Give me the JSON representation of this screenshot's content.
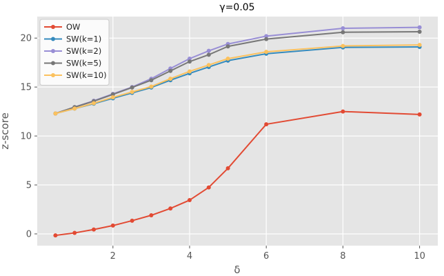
{
  "chart_data": {
    "type": "line",
    "title": "γ=0.05",
    "xlabel": "δ",
    "ylabel": "z-score",
    "xlim": [
      0.025,
      10.475
    ],
    "ylim": [
      -1.2,
      22.2
    ],
    "xticks": [
      2,
      4,
      6,
      8,
      10
    ],
    "yticks": [
      0,
      5,
      10,
      15,
      20
    ],
    "grid": true,
    "legend_position": "top-left",
    "x": [
      0.5,
      1,
      1.5,
      2,
      2.5,
      3,
      3.5,
      4,
      4.5,
      5,
      6,
      8,
      10
    ],
    "series": [
      {
        "name": "OW",
        "color": "#E24A33",
        "values": [
          -0.15,
          0.1,
          0.45,
          0.85,
          1.35,
          1.9,
          2.6,
          3.45,
          4.75,
          6.7,
          11.2,
          12.5,
          12.2
        ]
      },
      {
        "name": "SW(k=1)",
        "color": "#348ABD",
        "values": [
          12.3,
          12.8,
          13.3,
          13.85,
          14.4,
          14.95,
          15.7,
          16.4,
          17.05,
          17.7,
          18.4,
          19.05,
          19.1
        ]
      },
      {
        "name": "SW(k=2)",
        "color": "#988ED5",
        "values": [
          12.3,
          12.95,
          13.6,
          14.3,
          15.0,
          15.85,
          16.9,
          17.9,
          18.7,
          19.4,
          20.2,
          21.0,
          21.1
        ]
      },
      {
        "name": "SW(k=5)",
        "color": "#777777",
        "values": [
          12.3,
          12.95,
          13.55,
          14.25,
          14.95,
          15.7,
          16.65,
          17.6,
          18.3,
          19.15,
          19.9,
          20.6,
          20.65
        ]
      },
      {
        "name": "SW(k=10)",
        "color": "#FBC15E",
        "values": [
          12.3,
          12.8,
          13.35,
          13.95,
          14.5,
          15.05,
          15.85,
          16.6,
          17.25,
          17.9,
          18.6,
          19.2,
          19.3
        ]
      }
    ]
  }
}
